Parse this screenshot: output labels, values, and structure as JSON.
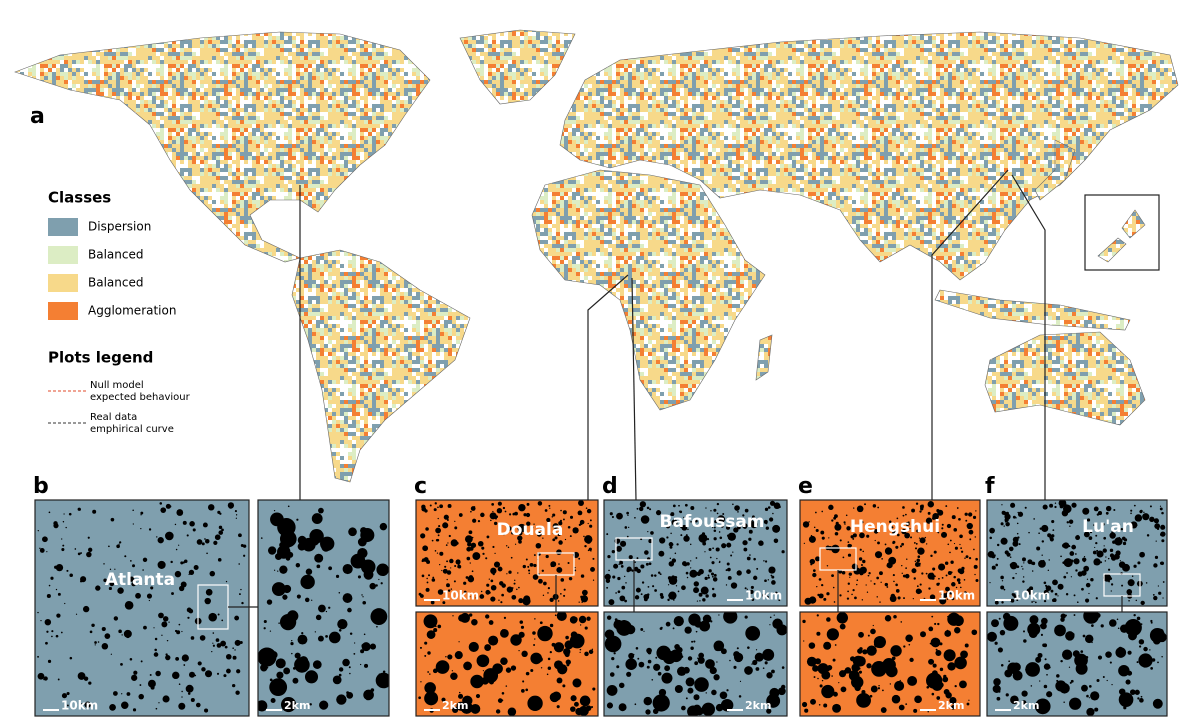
{
  "panel_a": {
    "label": "a"
  },
  "legend": {
    "classes_title": "Classes",
    "classes": [
      {
        "name": "Dispersion",
        "color": "#7f9fae"
      },
      {
        "name": "Balanced",
        "color": "#dcedc4"
      },
      {
        "name": "Balanced",
        "color": "#f7d98a"
      },
      {
        "name": "Agglomeration",
        "color": "#f47f33"
      }
    ],
    "plots_title": "Plots legend",
    "plots": [
      {
        "lines": [
          "Null model",
          "expected behaviour"
        ],
        "color": "#e04a2a"
      },
      {
        "lines": [
          "Real data",
          "emphirical curve"
        ],
        "color": "#333333"
      }
    ]
  },
  "panels": [
    {
      "label": "b",
      "city": "Atlanta",
      "background": "#7f9fae",
      "scales": [
        "10km",
        "2km"
      ]
    },
    {
      "label": "c",
      "city": "Douala",
      "background": "#f47f33",
      "scales": [
        "10km",
        "2km"
      ]
    },
    {
      "label": "d",
      "city": "Bafoussam",
      "background": "#7f9fae",
      "scales": [
        "10km",
        "2km"
      ]
    },
    {
      "label": "e",
      "city": "Hengshui",
      "background": "#f47f33",
      "scales": [
        "10km",
        "2km"
      ]
    },
    {
      "label": "f",
      "city": "Lu'an",
      "background": "#7f9fae",
      "scales": [
        "10km",
        "2km"
      ]
    }
  ]
}
